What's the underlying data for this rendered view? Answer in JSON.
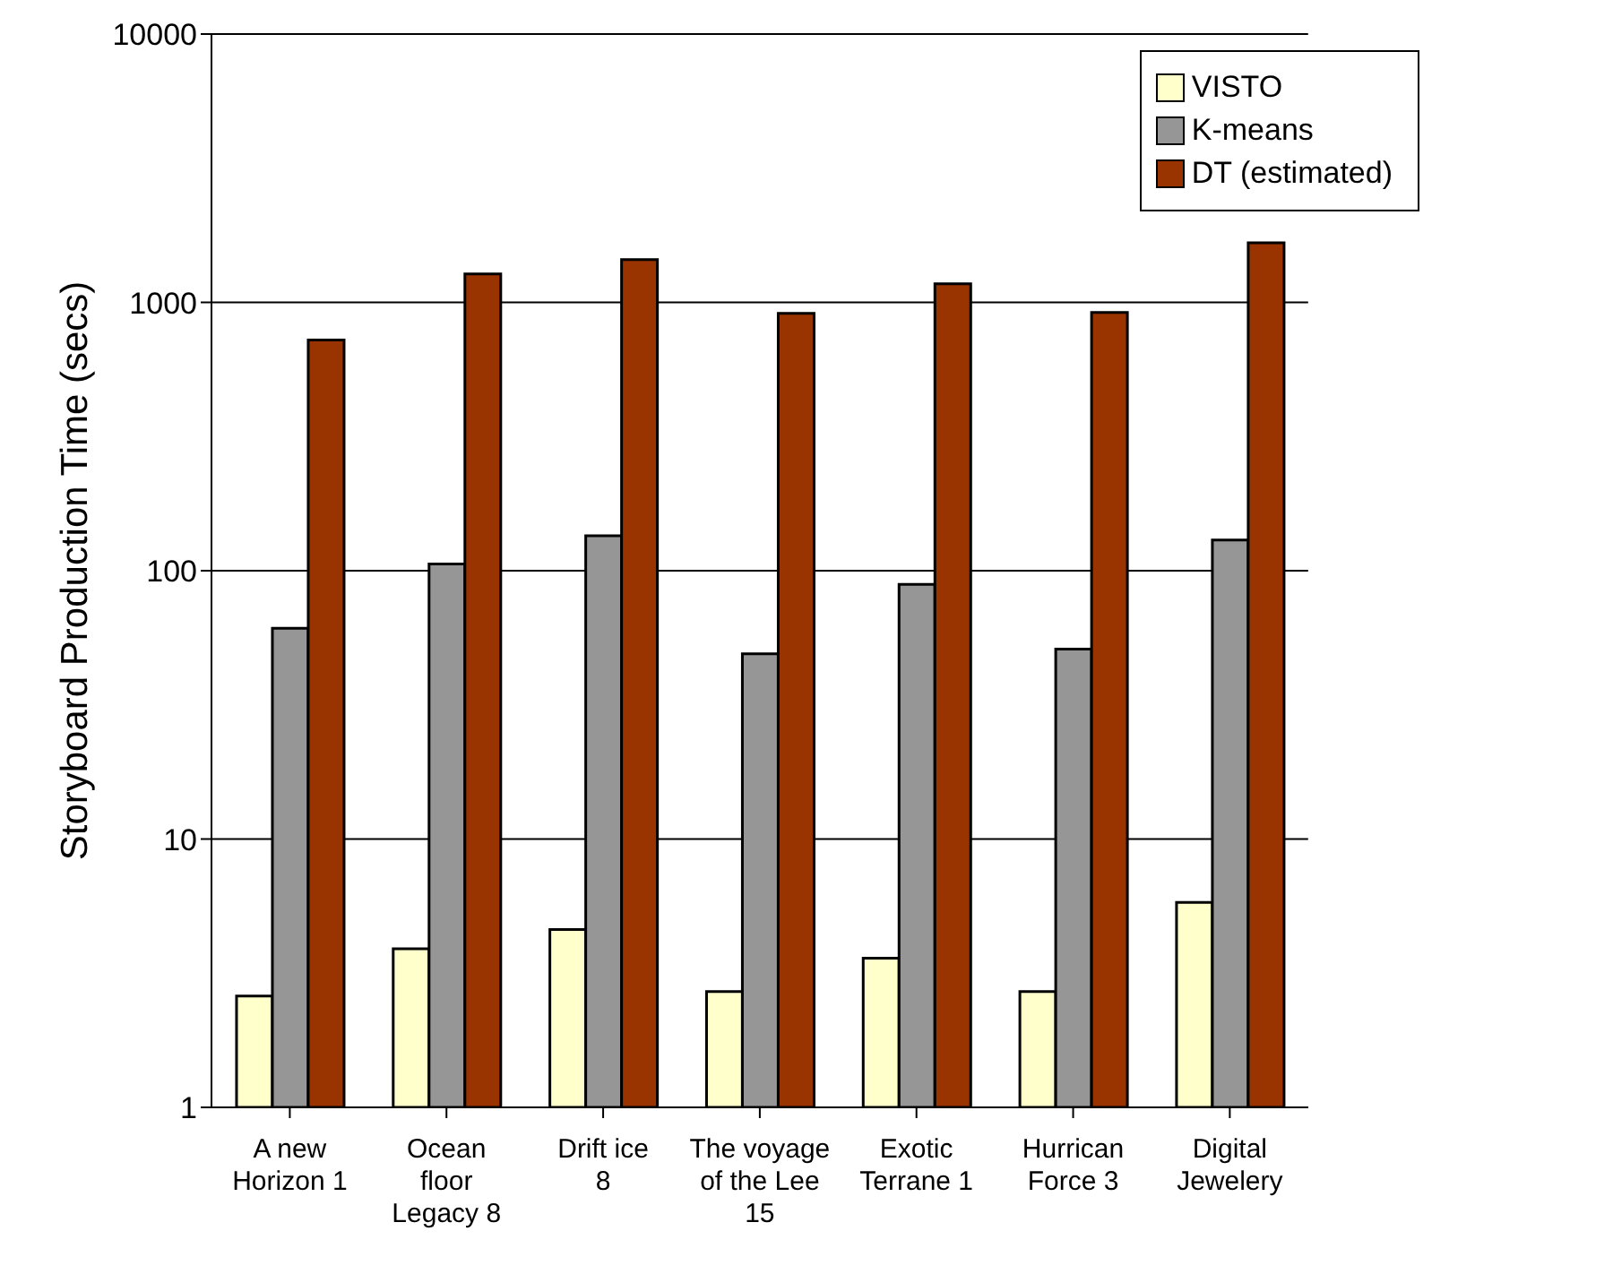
{
  "chart_data": {
    "type": "bar",
    "ylabel": "Storyboard Production Time (secs)",
    "categories": [
      "A new Horizon 1",
      "Ocean floor Legacy 8",
      "Drift ice 8",
      "The voyage of the Lee 15",
      "Exotic Terrane 1",
      "Hurrican Force 3",
      "Digital Jewelery"
    ],
    "series": [
      {
        "name": "VISTO",
        "color": "#ffffcc",
        "values": [
          2.6,
          3.9,
          4.6,
          2.7,
          3.6,
          2.7,
          5.8
        ]
      },
      {
        "name": "K-means",
        "color": "#969696",
        "values": [
          61,
          106,
          135,
          49,
          89,
          51,
          130
        ]
      },
      {
        "name": "DT (estimated)",
        "color": "#993300",
        "values": [
          724,
          1277,
          1443,
          910,
          1173,
          918,
          1668
        ]
      }
    ],
    "log": true,
    "ylim": [
      1,
      10000
    ],
    "yticks": [
      1,
      10,
      100,
      1000,
      10000
    ],
    "grid": "y",
    "legend": "top right"
  }
}
